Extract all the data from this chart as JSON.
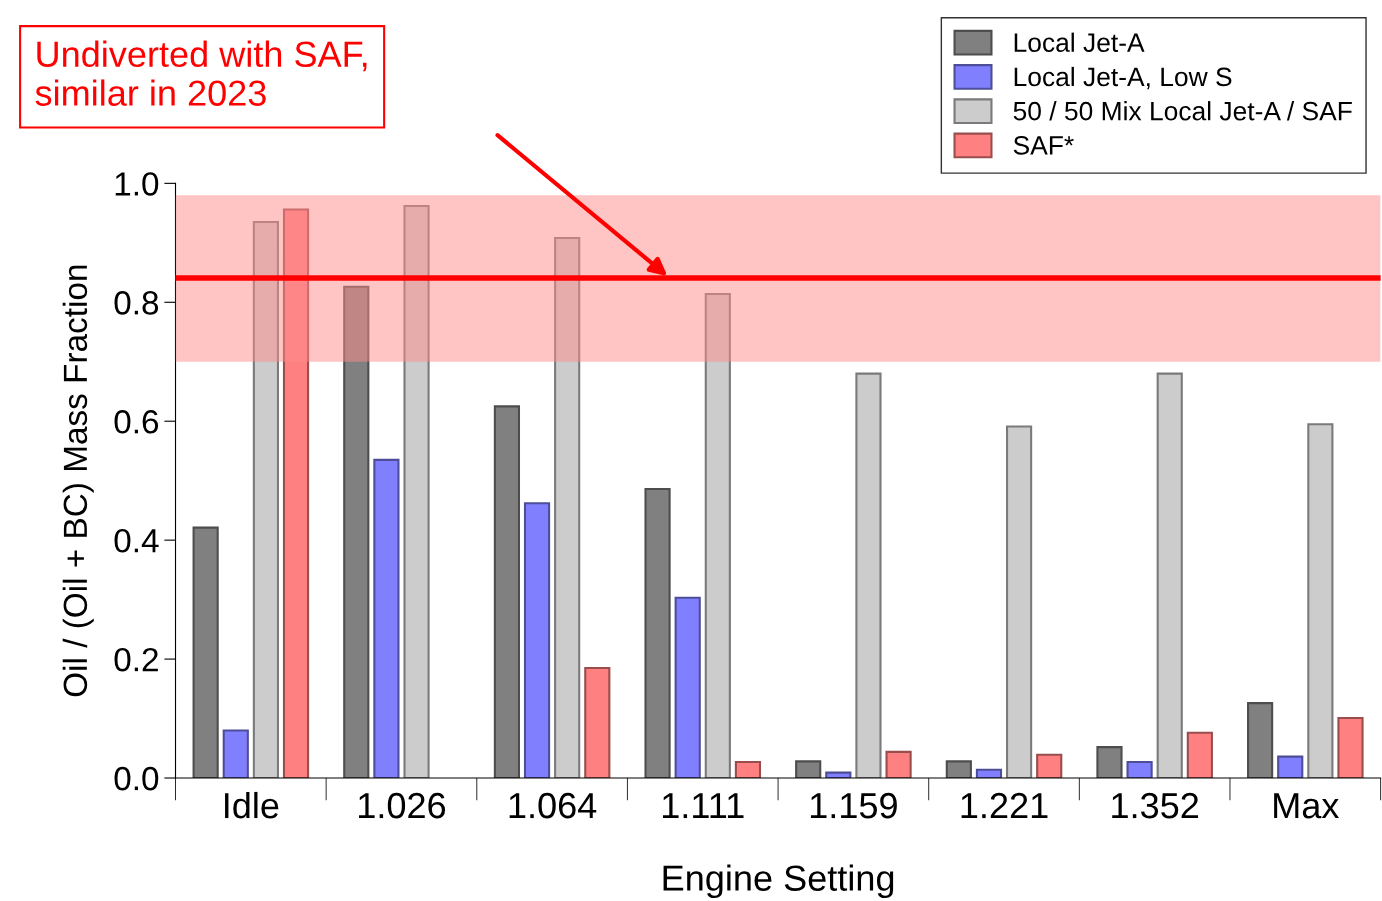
{
  "chart_data": {
    "type": "bar",
    "xlabel": "Engine Setting",
    "ylabel": "Oil / (Oil + BC) Mass Fraction",
    "categories": [
      "Idle",
      "1.026",
      "1.064",
      "1.111",
      "1.159",
      "1.221",
      "1.352",
      "Max"
    ],
    "series": [
      {
        "name": "Local Jet-A",
        "color": "#808080",
        "values": [
          0.421,
          0.826,
          0.625,
          0.486,
          0.028,
          0.028,
          0.052,
          0.126
        ]
      },
      {
        "name": "Local Jet-A, Low S",
        "color": "#8080ff",
        "values": [
          0.08,
          0.535,
          0.462,
          0.303,
          0.009,
          0.014,
          0.027,
          0.036
        ]
      },
      {
        "name": "50 / 50 Mix Local Jet-A / SAF",
        "color": "#cccccc",
        "values": [
          0.935,
          0.962,
          0.908,
          0.814,
          0.68,
          0.591,
          0.68,
          0.595
        ]
      },
      {
        "name": "SAF*",
        "color": "#ff8080",
        "values": [
          0.956,
          null,
          0.185,
          0.027,
          0.044,
          0.039,
          0.076,
          0.101
        ]
      }
    ],
    "ylim": [
      0,
      1.0
    ],
    "yticks": [
      {
        "value": 0,
        "label": "0.0"
      },
      0.2,
      0.4,
      0.6,
      0.8,
      {
        "value": 1,
        "label": "1.0"
      }
    ],
    "bands": [
      {
        "axis": "y",
        "from": 0.7,
        "to": 0.98,
        "color": "#ff8c8c"
      }
    ],
    "ref_lines": [
      {
        "axis": "y",
        "value": 0.841,
        "color": "#ff0000",
        "line_style": "solid"
      }
    ],
    "annotations": [
      "Undiverted with SAF,\nsimilar in 2023"
    ],
    "legend": "top right",
    "grid": false
  }
}
